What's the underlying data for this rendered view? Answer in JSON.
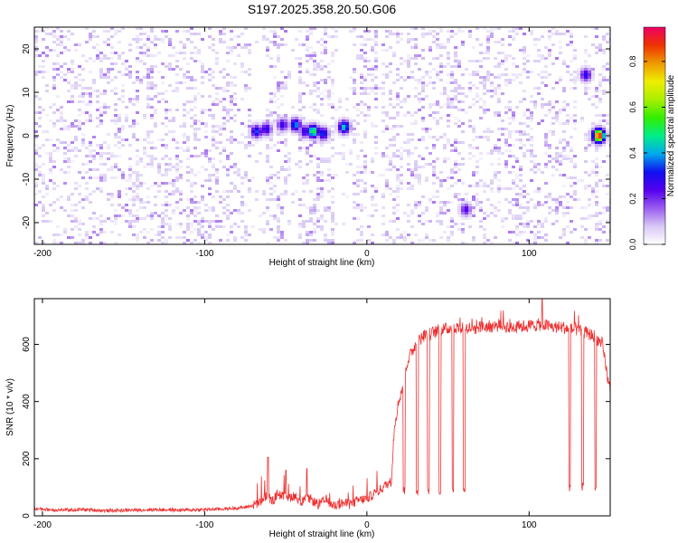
{
  "chart_data": [
    {
      "type": "heatmap",
      "title": "S197.2025.358.20.50.G06",
      "xlabel": "Height of straight line (km)",
      "ylabel": "Frequency (Hz)",
      "xlim": [
        -205,
        150
      ],
      "ylim": [
        -25,
        25
      ],
      "xticks": [
        -200,
        -100,
        0,
        100
      ],
      "yticks": [
        -20,
        -10,
        0,
        10,
        20
      ],
      "colorbar": {
        "label": "Normalized spectral amplitude",
        "range": [
          0,
          0.95
        ],
        "ticks": [
          "0.0",
          "0.2",
          "0.4",
          "0.6",
          "0.8"
        ],
        "tick_values": [
          0.0,
          0.2,
          0.4,
          0.6,
          0.8
        ],
        "colors": [
          "#ffffff",
          "#d8c8f4",
          "#9a5cf0",
          "#5500ee",
          "#1010ee",
          "#00aaee",
          "#00ee88",
          "#33ee00",
          "#aaee00",
          "#eeee00",
          "#ee9900",
          "#ee3300",
          "#ee0066"
        ]
      },
      "empty_bands_km": [
        [
          -72,
          -62
        ],
        [
          -48,
          -43
        ],
        [
          -20,
          -8
        ],
        [
          6,
          9
        ],
        [
          22,
          25
        ],
        [
          60,
          62
        ],
        [
          130,
          133
        ]
      ],
      "hotspots": [
        {
          "x": -68,
          "y": 1,
          "amp": 0.35
        },
        {
          "x": -62,
          "y": 1.5,
          "amp": 0.3
        },
        {
          "x": -52,
          "y": 2.5,
          "amp": 0.28
        },
        {
          "x": -44,
          "y": 2.5,
          "amp": 0.4
        },
        {
          "x": -38,
          "y": 1,
          "amp": 0.3
        },
        {
          "x": -33,
          "y": 1,
          "amp": 0.55
        },
        {
          "x": -27,
          "y": 0.5,
          "amp": 0.35
        },
        {
          "x": -14,
          "y": 2,
          "amp": 0.45
        },
        {
          "x": 61,
          "y": -17,
          "amp": 0.25
        },
        {
          "x": 135,
          "y": 14,
          "amp": 0.3
        },
        {
          "x": 143,
          "y": 0,
          "amp": 0.95
        }
      ]
    },
    {
      "type": "line",
      "xlabel": "Height of straight line (km)",
      "ylabel": "SNR (10 * v/v)",
      "xlim": [
        -205,
        150
      ],
      "ylim": [
        0,
        760
      ],
      "xticks": [
        -200,
        -100,
        0,
        100
      ],
      "yticks": [
        0,
        200,
        400,
        600
      ],
      "color": "#ee3030",
      "series": [
        {
          "name": "SNR",
          "x": [
            -205,
            -190,
            -175,
            -160,
            -145,
            -130,
            -115,
            -100,
            -85,
            -75,
            -68,
            -62,
            -58,
            -55,
            -50,
            -45,
            -40,
            -35,
            -30,
            -25,
            -20,
            -15,
            -10,
            -5,
            0,
            5,
            8,
            12,
            15,
            17,
            20,
            22,
            25,
            30,
            35,
            40,
            45,
            50,
            55,
            60,
            65,
            70,
            80,
            90,
            100,
            108,
            115,
            120,
            125,
            130,
            135,
            140,
            145,
            150
          ],
          "values": [
            25,
            20,
            22,
            18,
            20,
            22,
            20,
            22,
            25,
            30,
            40,
            70,
            50,
            80,
            60,
            70,
            50,
            60,
            40,
            55,
            35,
            45,
            40,
            55,
            60,
            80,
            90,
            110,
            120,
            320,
            410,
            450,
            540,
            600,
            630,
            640,
            650,
            655,
            660,
            660,
            655,
            660,
            665,
            660,
            665,
            670,
            660,
            660,
            655,
            650,
            640,
            630,
            600,
            430
          ],
          "dropouts": [
            {
              "x": 23,
              "value": 90
            },
            {
              "x": 31,
              "value": 85
            },
            {
              "x": 38,
              "value": 85
            },
            {
              "x": 45,
              "value": 90
            },
            {
              "x": 53,
              "value": 90
            },
            {
              "x": 60,
              "value": 95
            },
            {
              "x": 125,
              "value": 100
            },
            {
              "x": 133,
              "value": 100
            },
            {
              "x": 141,
              "value": 95
            }
          ],
          "spikes": [
            {
              "x": -61,
              "value": 205
            },
            {
              "x": -50,
              "value": 160
            },
            {
              "x": -37,
              "value": 165
            },
            {
              "x": 108,
              "value": 760
            }
          ]
        }
      ]
    }
  ]
}
